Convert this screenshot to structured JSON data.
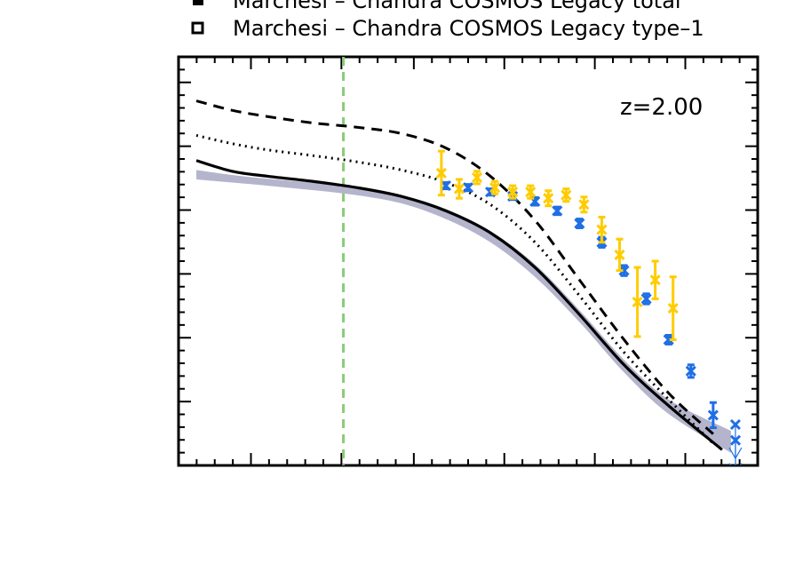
{
  "chart_data": {
    "type": "line",
    "title": "",
    "xlabel": "",
    "ylabel": "",
    "annotation": "z=2.00",
    "x_range": [
      0,
      6.5
    ],
    "y_range": [
      0,
      6.5
    ],
    "grid": false,
    "legend_position": "top-left",
    "legend": [
      {
        "marker": "filled-square",
        "label": "Marchesi – Chandra COSMOS Legacy total"
      },
      {
        "marker": "open-square",
        "label": "Marchesi – Chandra COSMOS Legacy type–1"
      }
    ],
    "reference_line": {
      "x": 1.85,
      "style": "dashed",
      "color": "#88cc77"
    },
    "series": [
      {
        "style": "dashed",
        "color": "#000000",
        "x": [
          0.2,
          0.6,
          1.0,
          1.5,
          2.0,
          2.5,
          3.0,
          3.5,
          4.0,
          4.5,
          5.0,
          5.5,
          6.0
        ],
        "y": [
          5.8,
          5.65,
          5.55,
          5.45,
          5.38,
          5.28,
          5.05,
          4.6,
          3.9,
          2.95,
          2.0,
          1.15,
          0.5
        ]
      },
      {
        "style": "dotted",
        "color": "#000000",
        "x": [
          0.2,
          0.6,
          1.0,
          1.5,
          2.0,
          2.5,
          3.0,
          3.5,
          4.0,
          4.5,
          5.0,
          5.5,
          6.0
        ],
        "y": [
          5.25,
          5.12,
          5.02,
          4.93,
          4.83,
          4.7,
          4.5,
          4.15,
          3.55,
          2.7,
          1.8,
          1.05,
          0.35
        ]
      },
      {
        "style": "solid",
        "color": "#000000",
        "x": [
          0.2,
          0.6,
          1.0,
          1.5,
          2.0,
          2.5,
          3.0,
          3.5,
          4.0,
          4.5,
          5.0,
          5.5,
          6.1
        ],
        "y": [
          4.85,
          4.68,
          4.6,
          4.52,
          4.42,
          4.28,
          4.05,
          3.7,
          3.15,
          2.4,
          1.6,
          0.95,
          0.25
        ]
      }
    ],
    "band": {
      "color": "#b4b4cc",
      "x": [
        0.2,
        0.6,
        1.0,
        1.5,
        2.0,
        2.5,
        3.0,
        3.5,
        4.0,
        4.5,
        5.0,
        5.5,
        6.2
      ],
      "upper": [
        4.7,
        4.62,
        4.56,
        4.5,
        4.43,
        4.3,
        4.08,
        3.73,
        3.2,
        2.47,
        1.68,
        1.05,
        0.55
      ],
      "lower": [
        4.55,
        4.5,
        4.45,
        4.38,
        4.3,
        4.17,
        3.92,
        3.55,
        3.0,
        2.28,
        1.48,
        0.82,
        0.2
      ]
    },
    "points_total": {
      "color": "#1f6fe5",
      "x": [
        3.0,
        3.25,
        3.5,
        3.75,
        4.0,
        4.25,
        4.5,
        4.75,
        5.0,
        5.25,
        5.5,
        5.75,
        6.0,
        6.25
      ],
      "y": [
        4.45,
        4.42,
        4.35,
        4.28,
        4.2,
        4.05,
        3.85,
        3.55,
        3.1,
        2.65,
        2.0,
        1.5,
        0.8,
        0.65
      ],
      "err": [
        0.05,
        0.05,
        0.05,
        0.05,
        0.06,
        0.06,
        0.07,
        0.08,
        0.08,
        0.08,
        0.07,
        0.1,
        0.2,
        0.0
      ],
      "upper_limit": [
        false,
        false,
        false,
        false,
        false,
        false,
        false,
        false,
        false,
        false,
        false,
        false,
        false,
        true
      ]
    },
    "points_type1": {
      "color": "#ffcc00",
      "x": [
        2.95,
        3.15,
        3.35,
        3.55,
        3.75,
        3.95,
        4.15,
        4.35,
        4.55,
        4.75,
        4.95,
        5.15,
        5.35,
        5.55
      ],
      "y": [
        4.65,
        4.4,
        4.58,
        4.42,
        4.35,
        4.35,
        4.25,
        4.3,
        4.15,
        3.75,
        3.35,
        2.6,
        2.95,
        2.5
      ],
      "err": [
        0.35,
        0.15,
        0.1,
        0.1,
        0.1,
        0.1,
        0.12,
        0.1,
        0.12,
        0.2,
        0.25,
        0.55,
        0.3,
        0.5
      ]
    },
    "extra_upper_limits": {
      "x": [
        6.5
      ],
      "y": [
        0.4
      ]
    }
  }
}
